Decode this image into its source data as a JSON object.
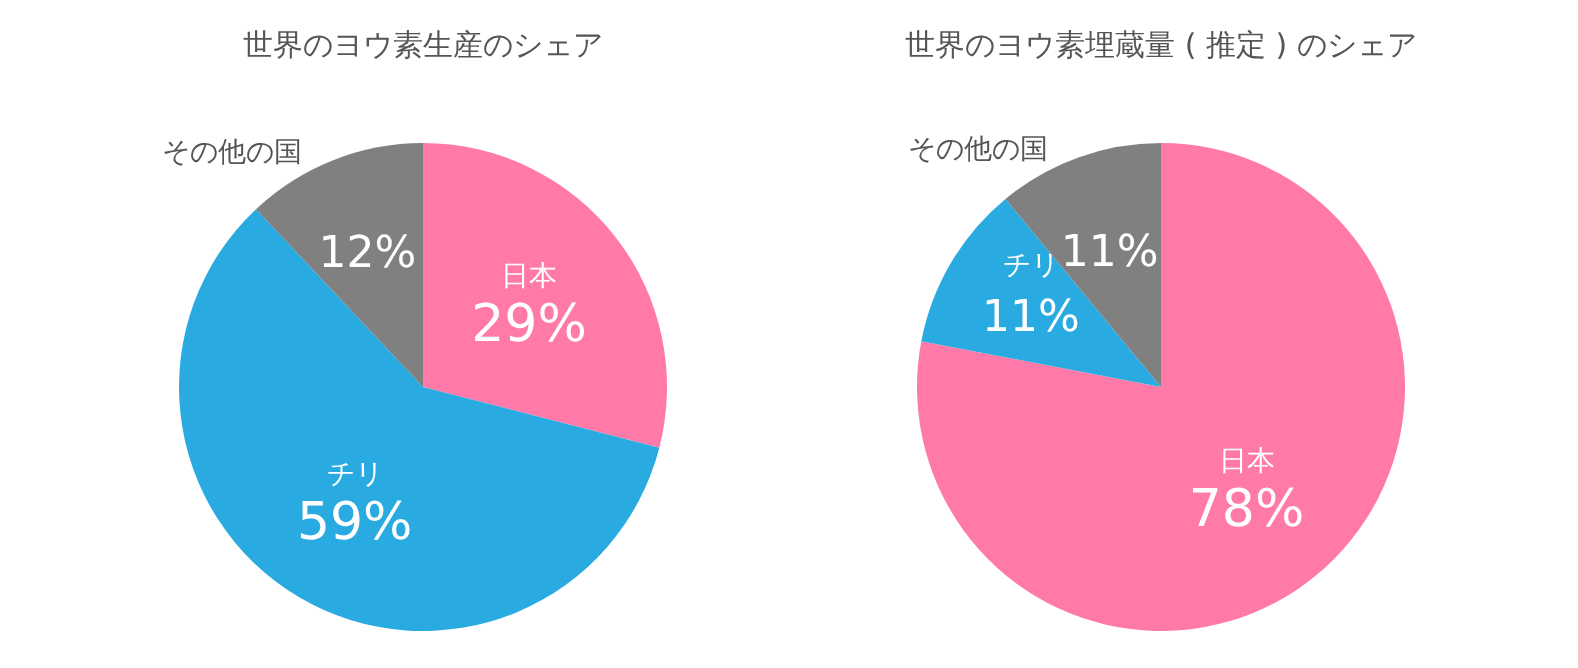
{
  "chart_data": [
    {
      "type": "pie",
      "title": "世界のヨウ素生産のシェア",
      "categories": [
        "日本",
        "チリ",
        "その他の国"
      ],
      "values": [
        29,
        59,
        12
      ],
      "colors": [
        "#ff7aa8",
        "#29abe2",
        "#808080"
      ],
      "value_labels": [
        "29%",
        "59%",
        "12%"
      ],
      "legend": false
    },
    {
      "type": "pie",
      "title": "世界のヨウ素埋蔵量 ( 推定 ) のシェア",
      "categories": [
        "日本",
        "チリ",
        "その他の国"
      ],
      "values": [
        78,
        11,
        11
      ],
      "colors": [
        "#ff7aa8",
        "#29abe2",
        "#808080"
      ],
      "value_labels": [
        "78%",
        "11%",
        "11%"
      ],
      "legend": false
    }
  ]
}
